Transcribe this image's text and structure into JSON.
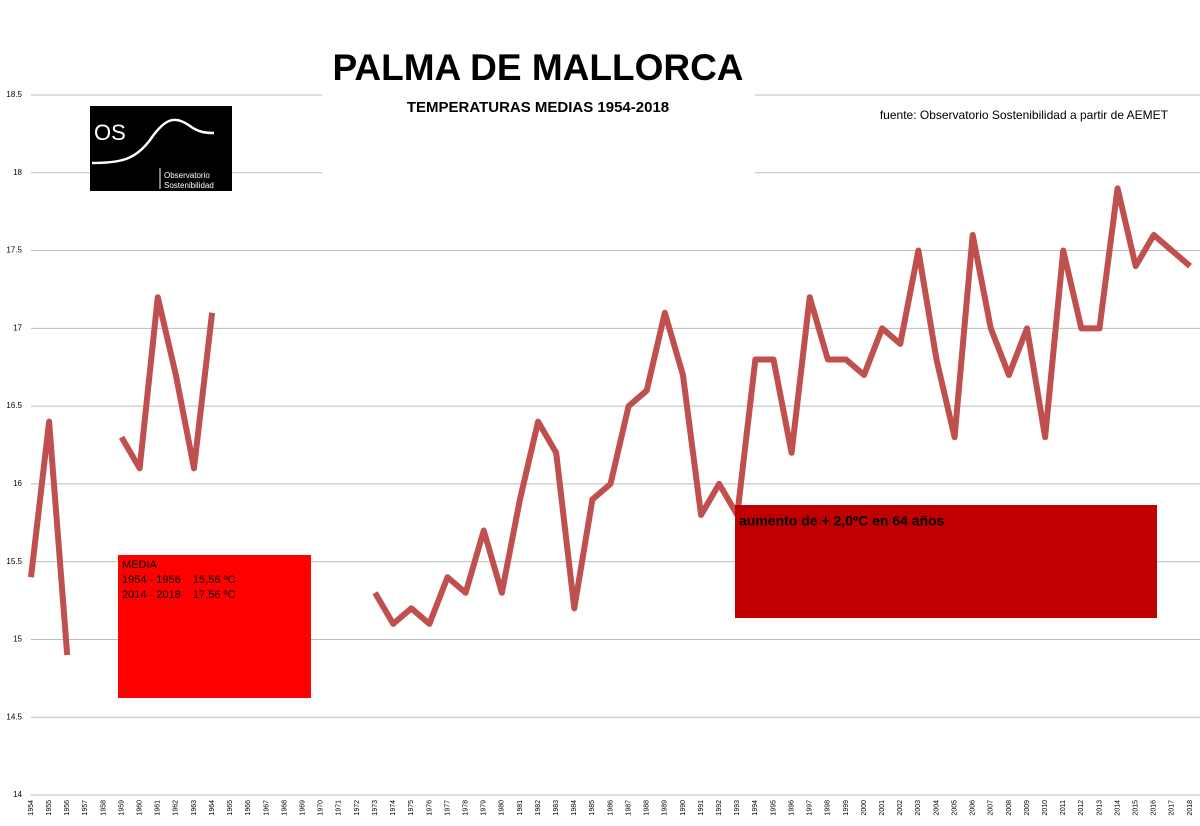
{
  "chart_data": {
    "type": "line",
    "title": "PALMA DE MALLORCA",
    "subtitle": "TEMPERATURAS MEDIAS 1954-2018",
    "source": "fuente: Observatorio Sostenibilidad a partir de AEMET",
    "categories": [
      "1954",
      "1955",
      "1956",
      "1957",
      "1958",
      "1959",
      "1960",
      "1961",
      "1962",
      "1963",
      "1964",
      "1965",
      "1966",
      "1967",
      "1968",
      "1969",
      "1970",
      "1971",
      "1972",
      "1973",
      "1974",
      "1975",
      "1976",
      "1977",
      "1978",
      "1979",
      "1980",
      "1981",
      "1982",
      "1983",
      "1984",
      "1985",
      "1986",
      "1987",
      "1988",
      "1989",
      "1990",
      "1991",
      "1992",
      "1993",
      "1994",
      "1995",
      "1996",
      "1997",
      "1998",
      "1999",
      "2000",
      "2001",
      "2002",
      "2003",
      "2004",
      "2005",
      "2006",
      "2007",
      "2008",
      "2009",
      "2010",
      "2011",
      "2012",
      "2013",
      "2014",
      "2015",
      "2016",
      "2017",
      "2018"
    ],
    "series": [
      {
        "color": "#c0504d",
        "values": [
          15.4,
          16.4,
          14.9,
          null,
          null,
          16.3,
          16.1,
          17.2,
          16.7,
          16.1,
          17.1,
          null,
          null,
          null,
          null,
          null,
          null,
          null,
          null,
          15.3,
          15.1,
          15.2,
          15.1,
          15.4,
          15.3,
          15.7,
          15.3,
          15.9,
          16.4,
          16.2,
          15.2,
          15.9,
          16.0,
          16.5,
          16.6,
          17.1,
          16.7,
          15.8,
          16.0,
          15.8,
          16.8,
          16.8,
          16.2,
          17.2,
          16.8,
          16.8,
          16.7,
          17.0,
          16.9,
          17.5,
          16.8,
          16.3,
          17.6,
          17.0,
          16.7,
          17.0,
          16.3,
          17.5,
          17.0,
          17.0,
          17.9,
          17.4,
          17.6,
          17.5,
          17.4
        ]
      }
    ],
    "ylim": [
      14,
      18.5
    ],
    "yticks": [
      14,
      14.5,
      15,
      15.5,
      16,
      16.5,
      17,
      17.5,
      18,
      18.5
    ],
    "grid": true,
    "annotations": [
      {
        "color": "#ff0000",
        "lines": [
          "MEDIA",
          "1954 - 1956    15,56 ºC",
          "2014 - 2018    17,56 ºC"
        ]
      },
      {
        "color": "#c00000",
        "lines": [
          "aumento de + 2,0ºC en 64 años"
        ]
      }
    ]
  },
  "logo": {
    "mark": "OS",
    "name": [
      "Observatorio",
      "Sostenibilidad"
    ]
  }
}
